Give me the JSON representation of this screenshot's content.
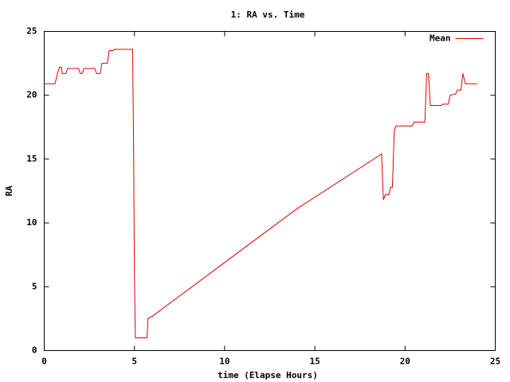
{
  "chart_data": {
    "type": "line",
    "title": "1: RA vs. Time",
    "x_label": "time (Elapse Hours)",
    "y_label": "RA",
    "x": [
      0,
      0.6,
      0.75,
      0.85,
      0.95,
      1.0,
      1.2,
      1.3,
      1.9,
      2.0,
      2.1,
      2.2,
      2.8,
      2.9,
      3.1,
      3.2,
      3.5,
      3.6,
      3.8,
      3.9,
      4.9,
      4.95,
      5.0,
      5.05,
      5.7,
      5.75,
      6.0,
      10.0,
      14.0,
      18.7,
      18.8,
      18.9,
      19.1,
      19.2,
      19.3,
      19.4,
      19.5,
      20.4,
      20.5,
      21.1,
      21.2,
      21.3,
      21.4,
      22.0,
      22.1,
      22.4,
      22.5,
      22.8,
      22.9,
      23.1,
      23.2,
      23.35,
      24.0
    ],
    "series": [
      {
        "name": "Mean",
        "color": "#e00000",
        "values": [
          20.9,
          20.9,
          21.8,
          22.2,
          22.2,
          21.7,
          21.7,
          22.1,
          22.1,
          21.7,
          21.7,
          22.1,
          22.1,
          21.7,
          21.7,
          22.5,
          22.5,
          23.5,
          23.5,
          23.6,
          23.6,
          16.5,
          6.0,
          1.0,
          1.0,
          2.5,
          2.7,
          6.9,
          11.1,
          15.4,
          11.8,
          12.2,
          12.2,
          12.8,
          12.8,
          17.2,
          17.6,
          17.6,
          17.9,
          17.9,
          21.7,
          21.7,
          19.2,
          19.2,
          19.3,
          19.3,
          20.0,
          20.1,
          20.4,
          20.4,
          21.7,
          20.9,
          20.9
        ]
      }
    ],
    "xlim": [
      0,
      25
    ],
    "xticks": [
      0,
      5,
      10,
      15,
      20,
      25
    ],
    "ylim": [
      0,
      25
    ],
    "yticks": [
      0,
      5,
      10,
      15,
      20,
      25
    ],
    "legend": "top-right"
  }
}
